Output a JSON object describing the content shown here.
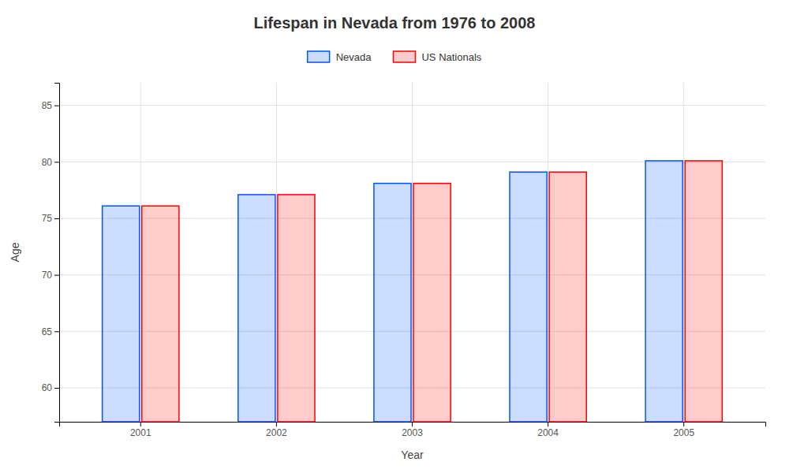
{
  "chart_data": {
    "type": "bar",
    "title": "Lifespan in Nevada from 1976 to 2008",
    "xlabel": "Year",
    "ylabel": "Age",
    "categories": [
      "2001",
      "2002",
      "2003",
      "2004",
      "2005"
    ],
    "series": [
      {
        "name": "Nevada",
        "color": "#0055ff",
        "values": [
          76.1,
          77.1,
          78.1,
          79.1,
          80.1
        ]
      },
      {
        "name": "US Nationals",
        "color": "#ff0000",
        "values": [
          76.1,
          77.1,
          78.1,
          79.1,
          80.1
        ]
      }
    ],
    "ylim": [
      57,
      87
    ],
    "yticks": [
      60,
      65,
      70,
      75,
      80,
      85
    ],
    "grid": true,
    "legend": "top"
  }
}
